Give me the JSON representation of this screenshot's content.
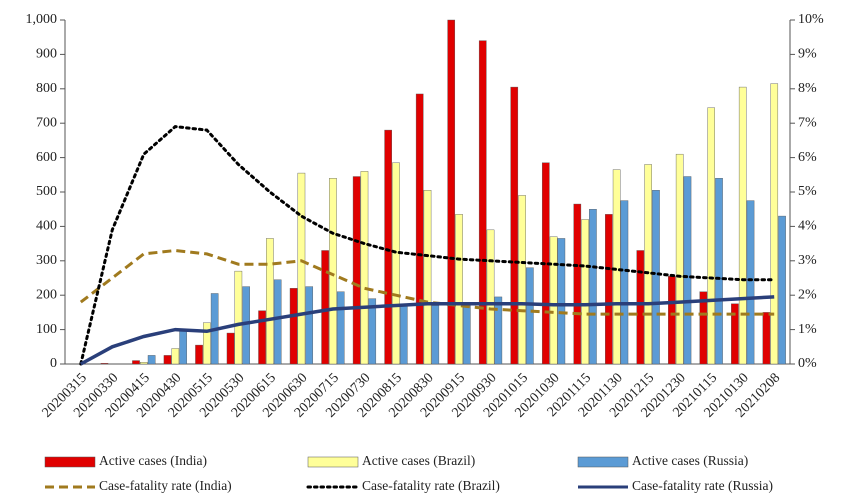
{
  "chart_data": {
    "type": "bar",
    "categories": [
      "20200315",
      "20200330",
      "20200415",
      "20200430",
      "20200515",
      "20200530",
      "20200615",
      "20200630",
      "20200715",
      "20200730",
      "20200815",
      "20200830",
      "20200915",
      "20200930",
      "20201015",
      "20201030",
      "20201115",
      "20201130",
      "20201215",
      "20201230",
      "20210115",
      "20210130",
      "20210208"
    ],
    "ylim": [
      0,
      1000
    ],
    "yticks": [
      0,
      100,
      200,
      300,
      400,
      500,
      600,
      700,
      800,
      900,
      {
        "value": 1000,
        "label": "1,000"
      }
    ],
    "y2lim": [
      0,
      10
    ],
    "y2ticks": [
      {
        "value": 0,
        "label": "0%"
      },
      {
        "value": 1,
        "label": "1%"
      },
      {
        "value": 2,
        "label": "2%"
      },
      {
        "value": 3,
        "label": "3%"
      },
      {
        "value": 4,
        "label": "4%"
      },
      {
        "value": 5,
        "label": "5%"
      },
      {
        "value": 6,
        "label": "6%"
      },
      {
        "value": 7,
        "label": "7%"
      },
      {
        "value": 8,
        "label": "8%"
      },
      {
        "value": 9,
        "label": "9%"
      },
      {
        "value": 10,
        "label": "10%"
      }
    ],
    "series": [
      {
        "name": "Active cases (India)",
        "type": "bar",
        "color": "#e00000",
        "values": [
          0,
          2,
          10,
          25,
          55,
          90,
          155,
          220,
          330,
          545,
          680,
          785,
          1000,
          940,
          805,
          585,
          465,
          435,
          330,
          255,
          210,
          175,
          150
        ]
      },
      {
        "name": "Active cases (Brazil)",
        "type": "bar",
        "color": "#ffff99",
        "values": [
          0,
          0,
          5,
          45,
          120,
          270,
          365,
          555,
          540,
          560,
          585,
          505,
          435,
          390,
          490,
          370,
          420,
          565,
          580,
          610,
          745,
          805,
          815
        ]
      },
      {
        "name": "Active cases (Russia)",
        "type": "bar",
        "color": "#5b9bd5",
        "values": [
          0,
          0,
          25,
          100,
          205,
          225,
          245,
          225,
          210,
          190,
          175,
          170,
          175,
          195,
          280,
          365,
          450,
          475,
          505,
          545,
          540,
          475,
          430
        ]
      },
      {
        "name": "Case-fatality rate (India)",
        "type": "line",
        "axis": "y2",
        "color": "#a07a1e",
        "line_style": "dashed",
        "values": [
          1.8,
          2.5,
          3.2,
          3.3,
          3.2,
          2.9,
          2.9,
          3.0,
          2.6,
          2.2,
          2.0,
          1.8,
          1.7,
          1.6,
          1.55,
          1.5,
          1.45,
          1.45,
          1.45,
          1.45,
          1.45,
          1.45,
          1.45
        ]
      },
      {
        "name": "Case-fatality rate (Brazil)",
        "type": "line",
        "axis": "y2",
        "color": "#000000",
        "line_style": "dotted",
        "values": [
          0,
          3.9,
          6.1,
          6.9,
          6.8,
          5.8,
          5.0,
          4.3,
          3.8,
          3.5,
          3.25,
          3.15,
          3.05,
          3.0,
          2.95,
          2.9,
          2.85,
          2.75,
          2.65,
          2.55,
          2.5,
          2.45,
          2.45
        ]
      },
      {
        "name": "Case-fatality rate (Russia)",
        "type": "line",
        "axis": "y2",
        "color": "#2a3f7a",
        "line_style": "solid",
        "values": [
          0,
          0.5,
          0.8,
          1.0,
          0.95,
          1.15,
          1.3,
          1.45,
          1.6,
          1.65,
          1.7,
          1.75,
          1.75,
          1.75,
          1.75,
          1.72,
          1.72,
          1.75,
          1.75,
          1.8,
          1.85,
          1.9,
          1.95
        ]
      }
    ]
  }
}
